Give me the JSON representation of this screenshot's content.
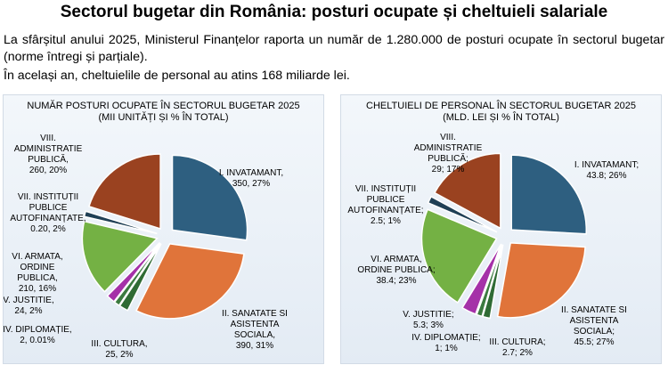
{
  "header": {
    "title": "Sectorul bugetar din România: posturi ocupate și cheltuieli salariale",
    "para1": "La sfârșitul anului 2025, Ministerul Finanțelor raporta un număr de 1.280.000 de posturi ocupate în sectorul bugetar (norme întregi și parțiale).",
    "para2": "În același an, cheltuielile de personal au atins 168 miliarde lei."
  },
  "chart_data": [
    {
      "type": "pie",
      "title_line1": "NUMĂR POSTURI OCUPATE ÎN SECTORUL BUGETAR 2025",
      "title_line2": "(MII UNITĂȚI ȘI % ÎN TOTAL)",
      "slices": [
        {
          "name": "I. INVATAMANT",
          "value": 350,
          "percent": 27,
          "color": "#2e5f80",
          "label_lines": [
            "I. INVATAMANT,",
            "350, 27%"
          ]
        },
        {
          "name": "II. SANATATE SI ASISTENTA SOCIALA",
          "value": 390,
          "percent": 31,
          "color": "#e0743a",
          "label_lines": [
            "II. SANATATE SI",
            "ASISTENTA",
            "SOCIALA,",
            "390, 31%"
          ]
        },
        {
          "name": "III. CULTURA",
          "value": 25,
          "percent": 2,
          "color": "#2f6b34",
          "label_lines": [
            "III. CULTURA,",
            "25, 2%"
          ]
        },
        {
          "name": "IV. DIPLOMAȚIE",
          "value": 2,
          "percent": 0.01,
          "color": "#3b7a3f",
          "label_lines": [
            "IV. DIPLOMAȚIE,",
            "2, 0.01%"
          ]
        },
        {
          "name": "V. JUSTITIE",
          "value": 24,
          "percent": 2,
          "color": "#a531a8",
          "label_lines": [
            "V. JUSTITIE,",
            "24, 2%"
          ]
        },
        {
          "name": "VI. ARMATA, ORDINE PUBLICA",
          "value": 210,
          "percent": 16,
          "color": "#74b144",
          "label_lines": [
            "VI. ARMATA,",
            "ORDINE",
            "PUBLICA,",
            "210, 16%"
          ]
        },
        {
          "name": "VII. INSTITUȚII PUBLICE AUTOFINANȚATE",
          "value": 0.2,
          "percent": 2,
          "color": "#1f3f55",
          "label_lines": [
            "VII. INSTITUȚII",
            "PUBLICE",
            "AUTOFINANȚATE,",
            "0.20, 2%"
          ]
        },
        {
          "name": "VIII. ADMINISTRATIE PUBLICĂ",
          "value": 260,
          "percent": 20,
          "color": "#9a4220",
          "label_lines": [
            "VIII.",
            "ADMINISTRATIE",
            "PUBLICĂ,",
            "260, 20%"
          ]
        }
      ]
    },
    {
      "type": "pie",
      "title_line1": "CHELTUIELI DE PERSONAL ÎN SECTORUL BUGETAR 2025",
      "title_line2": "(MLD. LEI ȘI % ÎN TOTAL)",
      "slices": [
        {
          "name": "I. INVATAMANT",
          "value": 43.8,
          "percent": 26,
          "color": "#2e5f80",
          "label_lines": [
            "I. INVATAMANT;",
            "43.8; 26%"
          ]
        },
        {
          "name": "II. SANATATE SI ASISTENTA SOCIALA",
          "value": 45.5,
          "percent": 27,
          "color": "#e0743a",
          "label_lines": [
            "II. SANATATE SI",
            "ASISTENTA",
            "SOCIALA;",
            "45.5; 27%"
          ]
        },
        {
          "name": "III. CULTURA",
          "value": 2.7,
          "percent": 2,
          "color": "#2f6b34",
          "label_lines": [
            "III. CULTURA;",
            "2.7; 2%"
          ]
        },
        {
          "name": "IV. DIPLOMAȚIE",
          "value": 1,
          "percent": 1,
          "color": "#3b7a3f",
          "label_lines": [
            "IV. DIPLOMAȚIE;",
            "1; 1%"
          ]
        },
        {
          "name": "V. JUSTITIE",
          "value": 5.3,
          "percent": 3,
          "color": "#a531a8",
          "label_lines": [
            "V. JUSTITIE;",
            "5.3; 3%"
          ]
        },
        {
          "name": "VI. ARMATA, ORDINE PUBLICA",
          "value": 38.4,
          "percent": 23,
          "color": "#74b144",
          "label_lines": [
            "VI. ARMATA,",
            "ORDINE PUBLICA;",
            "38.4; 23%"
          ]
        },
        {
          "name": "VII. INSTITUȚII PUBLICE AUTOFINANȚATE",
          "value": 2.5,
          "percent": 1,
          "color": "#1f3f55",
          "label_lines": [
            "VII. INSTITUȚII",
            "PUBLICE",
            "AUTOFINANȚATE;",
            "2.5; 1%"
          ]
        },
        {
          "name": "VIII. ADMINISTRATIE PUBLICĂ",
          "value": 29,
          "percent": 17,
          "color": "#9a4220",
          "label_lines": [
            "VIII.",
            "ADMINISTRATIE",
            "PUBLICĂ;",
            "29; 17%"
          ]
        }
      ]
    }
  ]
}
